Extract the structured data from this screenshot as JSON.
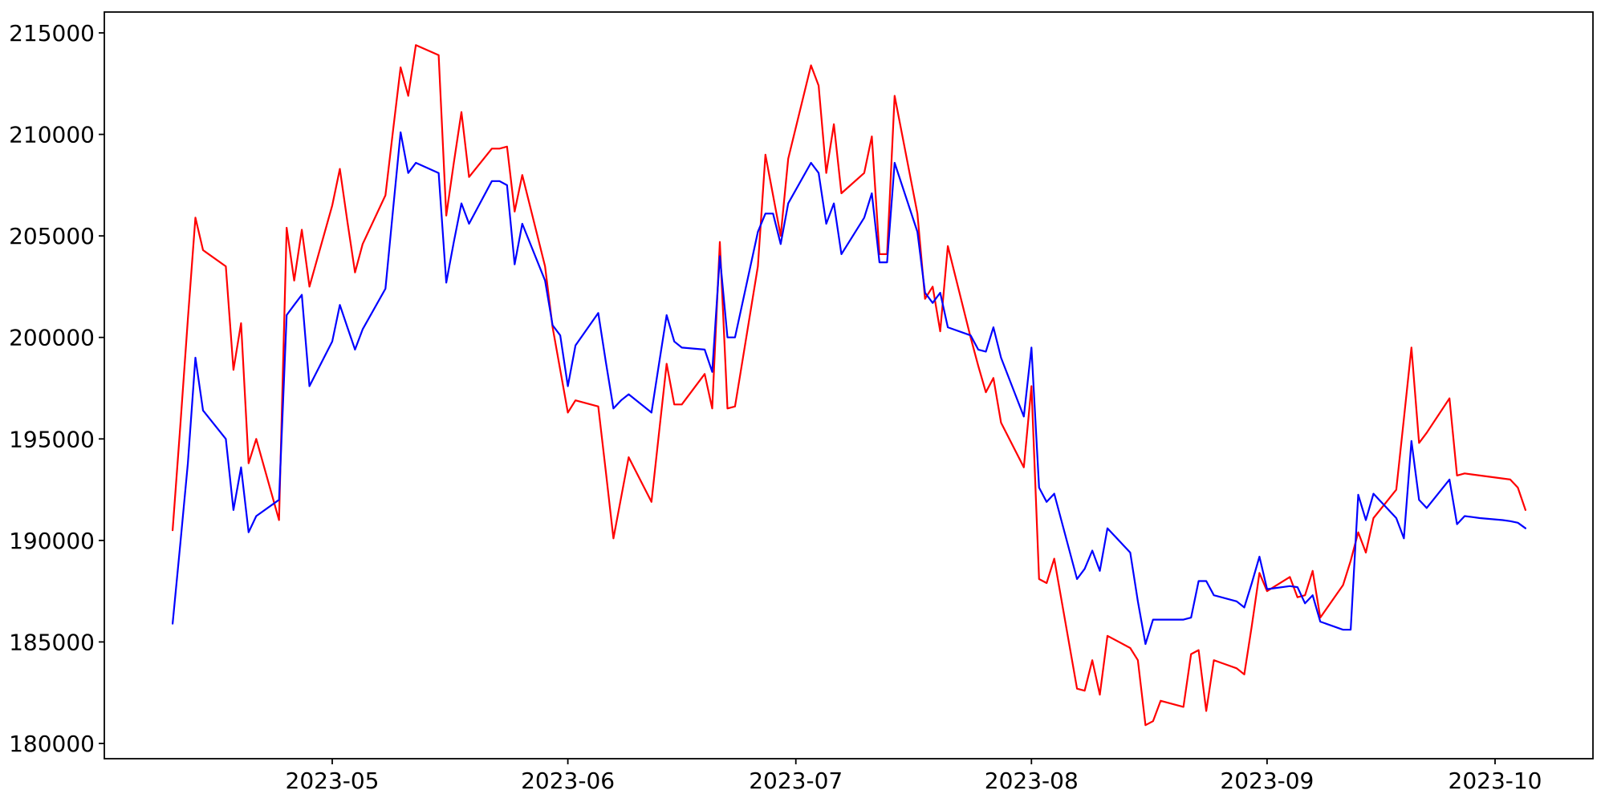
{
  "figure": {
    "background": "#ffffff",
    "axis_color": "#000000"
  },
  "chart_data": {
    "type": "line",
    "title": "",
    "xlabel": "",
    "ylabel": "",
    "grid": false,
    "legend": null,
    "ylim": [
      179200,
      216000
    ],
    "xlim": [
      "2023-04-01",
      "2023-10-14"
    ],
    "y_ticks": [
      180000,
      185000,
      190000,
      195000,
      200000,
      205000,
      210000,
      215000
    ],
    "x_tick_labels": [
      "2023-05",
      "2023-06",
      "2023-07",
      "2023-08",
      "2023-09",
      "2023-10"
    ],
    "x_dates_2023": [
      "04-10",
      "04-11",
      "04-12",
      "04-13",
      "04-14",
      "04-17",
      "04-18",
      "04-19",
      "04-20",
      "04-21",
      "04-24",
      "04-25",
      "04-26",
      "04-27",
      "04-28",
      "05-01",
      "05-02",
      "05-03",
      "05-04",
      "05-05",
      "05-08",
      "05-09",
      "05-10",
      "05-11",
      "05-12",
      "05-15",
      "05-16",
      "05-17",
      "05-18",
      "05-19",
      "05-22",
      "05-23",
      "05-24",
      "05-25",
      "05-26",
      "05-29",
      "05-30",
      "05-31",
      "06-01",
      "06-02",
      "06-05",
      "06-06",
      "06-07",
      "06-08",
      "06-09",
      "06-12",
      "06-13",
      "06-14",
      "06-15",
      "06-16",
      "06-19",
      "06-20",
      "06-21",
      "06-22",
      "06-23",
      "06-26",
      "06-27",
      "06-28",
      "06-29",
      "06-30",
      "07-03",
      "07-04",
      "07-05",
      "07-06",
      "07-07",
      "07-10",
      "07-11",
      "07-12",
      "07-13",
      "07-14",
      "07-17",
      "07-18",
      "07-19",
      "07-20",
      "07-21",
      "07-24",
      "07-25",
      "07-26",
      "07-27",
      "07-28",
      "07-31",
      "08-01",
      "08-02",
      "08-03",
      "08-04",
      "08-07",
      "08-08",
      "08-09",
      "08-10",
      "08-11",
      "08-14",
      "08-15",
      "08-16",
      "08-17",
      "08-18",
      "08-21",
      "08-22",
      "08-23",
      "08-24",
      "08-25",
      "08-28",
      "08-29",
      "08-30",
      "08-31",
      "09-01",
      "09-04",
      "09-05",
      "09-06",
      "09-07",
      "09-08",
      "09-11",
      "09-12",
      "09-13",
      "09-14",
      "09-15",
      "09-18",
      "09-19",
      "09-20",
      "09-21",
      "09-22",
      "09-25",
      "09-26",
      "09-27",
      "09-28",
      "09-29",
      "10-02",
      "10-03",
      "10-04",
      "10-05"
    ],
    "series": [
      {
        "name": "red",
        "color": "#ff0000",
        "values": [
          190500,
          195600,
          200900,
          205900,
          204300,
          203500,
          198400,
          200700,
          193800,
          195000,
          191000,
          205400,
          202800,
          205300,
          202500,
          206500,
          208300,
          205700,
          203200,
          204600,
          207000,
          210200,
          213300,
          211900,
          214400,
          213900,
          206000,
          208600,
          211100,
          207900,
          209300,
          209300,
          209400,
          206200,
          208000,
          203500,
          200500,
          198400,
          196300,
          196900,
          196600,
          193400,
          190100,
          192100,
          194100,
          191900,
          195300,
          198700,
          196700,
          196700,
          198200,
          196500,
          204700,
          196500,
          196600,
          203500,
          209000,
          207000,
          205000,
          208800,
          213400,
          212400,
          208100,
          210500,
          207100,
          208100,
          209900,
          204100,
          204100,
          211900,
          206100,
          201900,
          202500,
          200300,
          204500,
          200000,
          198600,
          197300,
          198000,
          195800,
          193600,
          197600,
          188100,
          187900,
          189100,
          182700,
          182600,
          184100,
          182400,
          185300,
          184700,
          184100,
          180900,
          181100,
          182100,
          181800,
          184400,
          184600,
          181600,
          184100,
          183700,
          183400,
          185800,
          188400,
          187500,
          188200,
          187200,
          187300,
          188500,
          186200,
          187800,
          189000,
          190400,
          189400,
          191100,
          192500,
          196000,
          199500,
          194800,
          195300,
          197000,
          193200,
          193300,
          193250,
          193200,
          193050,
          193000,
          192600,
          191500
        ]
      },
      {
        "name": "blue",
        "color": "#0000ff",
        "values": [
          185900,
          189800,
          193800,
          199000,
          196400,
          195000,
          191500,
          193600,
          190400,
          191200,
          192000,
          201100,
          201600,
          202100,
          197600,
          199800,
          201600,
          200500,
          199400,
          200400,
          202400,
          206300,
          210100,
          208100,
          208600,
          208100,
          202700,
          204700,
          206600,
          205600,
          207700,
          207700,
          207500,
          203600,
          205600,
          202800,
          200600,
          200100,
          197600,
          199600,
          201200,
          198800,
          196500,
          196900,
          197200,
          196300,
          198700,
          201100,
          199800,
          199500,
          199400,
          198300,
          204000,
          200000,
          200000,
          205200,
          206100,
          206100,
          204600,
          206600,
          208600,
          208100,
          205600,
          206600,
          204100,
          205900,
          207100,
          203700,
          203700,
          208600,
          205200,
          202200,
          201700,
          202200,
          200500,
          200100,
          199400,
          199300,
          200500,
          199000,
          196100,
          199500,
          192600,
          191900,
          192300,
          188100,
          188600,
          189500,
          188500,
          190600,
          189400,
          187000,
          184900,
          186100,
          186100,
          186100,
          186200,
          188000,
          188000,
          187300,
          187000,
          186700,
          187900,
          189200,
          187600,
          187750,
          187700,
          186900,
          187300,
          186000,
          185600,
          185600,
          192250,
          191000,
          192300,
          191100,
          190100,
          194900,
          192000,
          191600,
          193000,
          190800,
          191200,
          191150,
          191100,
          191000,
          190950,
          190870,
          190600
        ]
      }
    ]
  }
}
